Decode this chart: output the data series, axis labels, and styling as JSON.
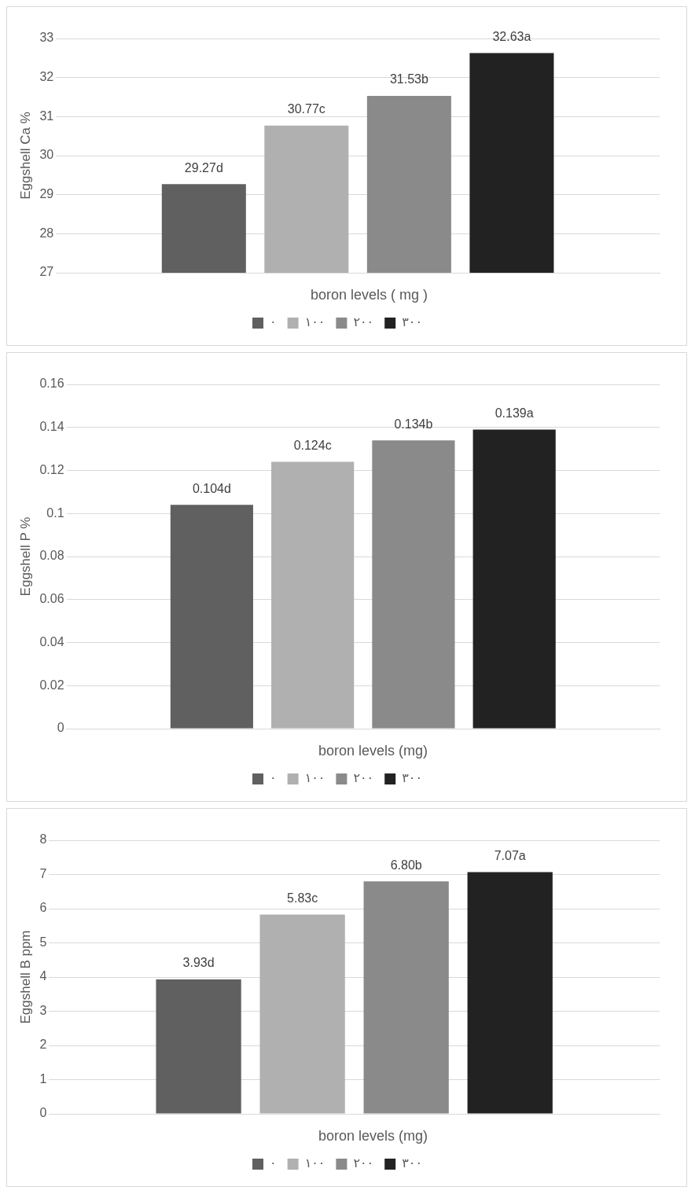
{
  "chart_data": [
    {
      "type": "bar",
      "categories": [
        null
      ],
      "ylabel": "Eggshell Ca %",
      "legend_title": "boron levels ( mg )",
      "ylim": [
        27,
        33
      ],
      "yticks": [
        27,
        28,
        29,
        30,
        31,
        32,
        33
      ],
      "grid": "y",
      "legend": "bottom",
      "series": [
        {
          "name": "٠",
          "color": "#606060",
          "values": [
            29.27
          ],
          "value_labels": [
            "29.27d"
          ]
        },
        {
          "name": "١٠٠",
          "color": "#b0b0b0",
          "values": [
            30.77
          ],
          "value_labels": [
            "30.77c"
          ]
        },
        {
          "name": "٢٠٠",
          "color": "#8a8a8a",
          "values": [
            31.53
          ],
          "value_labels": [
            "31.53b"
          ]
        },
        {
          "name": "٣٠٠",
          "color": "#222222",
          "values": [
            32.63
          ],
          "value_labels": [
            "32.63a"
          ]
        }
      ]
    },
    {
      "type": "bar",
      "categories": [
        null
      ],
      "ylabel": "Eggshell P %",
      "legend_title": "boron levels (mg)",
      "ylim": [
        0,
        0.16
      ],
      "yticks": [
        0,
        0.02,
        0.04,
        0.06,
        0.08,
        0.1,
        0.12,
        0.14,
        0.16
      ],
      "grid": "y",
      "legend": "bottom",
      "series": [
        {
          "name": "٠",
          "color": "#606060",
          "values": [
            0.104
          ],
          "value_labels": [
            "0.104d"
          ]
        },
        {
          "name": "١٠٠",
          "color": "#b0b0b0",
          "values": [
            0.124
          ],
          "value_labels": [
            "0.124c"
          ]
        },
        {
          "name": "٢٠٠",
          "color": "#8a8a8a",
          "values": [
            0.134
          ],
          "value_labels": [
            "0.134b"
          ]
        },
        {
          "name": "٣٠٠",
          "color": "#222222",
          "values": [
            0.139
          ],
          "value_labels": [
            "0.139a"
          ]
        }
      ]
    },
    {
      "type": "bar",
      "categories": [
        null
      ],
      "ylabel": "Eggshell B ppm",
      "legend_title": "boron levels (mg)",
      "ylim": [
        0,
        8
      ],
      "yticks": [
        0,
        1,
        2,
        3,
        4,
        5,
        6,
        7,
        8
      ],
      "grid": "y",
      "legend": "bottom",
      "series": [
        {
          "name": "٠",
          "color": "#606060",
          "values": [
            3.93
          ],
          "value_labels": [
            "3.93d"
          ]
        },
        {
          "name": "١٠٠",
          "color": "#b0b0b0",
          "values": [
            5.83
          ],
          "value_labels": [
            "5.83c"
          ]
        },
        {
          "name": "٢٠٠",
          "color": "#8a8a8a",
          "values": [
            6.8
          ],
          "value_labels": [
            "6.80b"
          ]
        },
        {
          "name": "٣٠٠",
          "color": "#222222",
          "values": [
            7.07
          ],
          "value_labels": [
            "7.07a"
          ]
        }
      ]
    }
  ]
}
